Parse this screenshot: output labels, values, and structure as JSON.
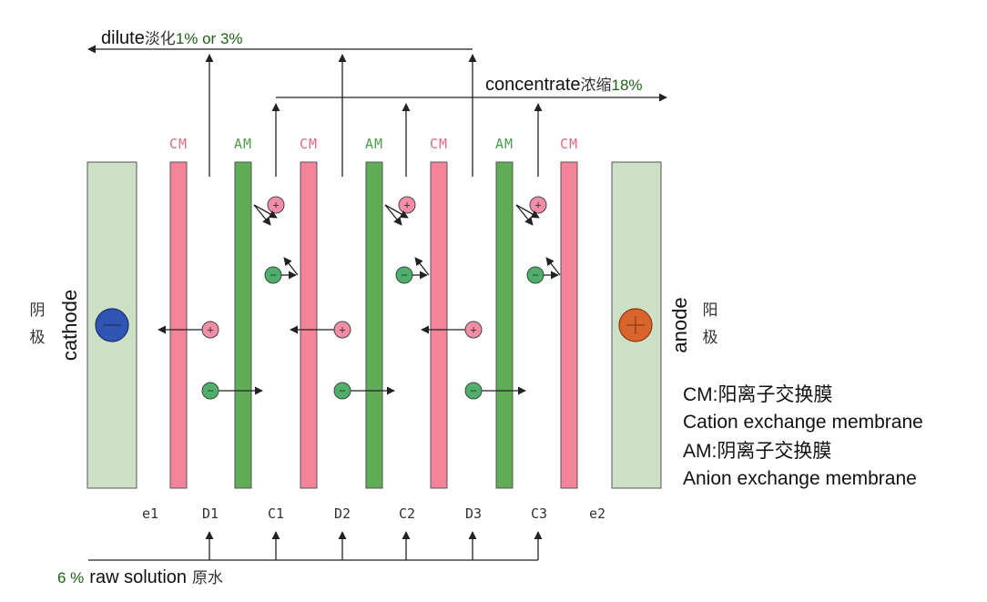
{
  "flows": {
    "dilute": {
      "en": "dilute",
      "cn": "淡化",
      "pct": "1% or 3%"
    },
    "concentrate": {
      "en": "concentrate",
      "cn": "浓缩",
      "pct": "18%"
    },
    "raw": {
      "pct": "6 %",
      "en": "raw solution",
      "cn": "原水"
    }
  },
  "membranes": {
    "labels": [
      "CM",
      "AM",
      "CM",
      "AM",
      "CM",
      "AM",
      "CM"
    ],
    "types": [
      "cation",
      "anion",
      "cation",
      "anion",
      "cation",
      "anion",
      "cation"
    ]
  },
  "channels": [
    "e1",
    "D1",
    "C1",
    "D2",
    "C2",
    "D3",
    "C3",
    "e2"
  ],
  "electrodes": {
    "cathode": {
      "en": "cathode",
      "cn1": "阴",
      "cn2": "极"
    },
    "anode": {
      "en": "anode",
      "cn1": "阳",
      "cn2": "极"
    }
  },
  "ion_signs": {
    "cation": "+",
    "anion": "−"
  },
  "legend": {
    "cm_abbr": "CM",
    "cm_cn": ":阳离子交换膜",
    "cm_en": "Cation exchange membrane",
    "am_abbr": "AM",
    "am_cn": ":阴离子交换膜",
    "am_en": "Anion exchange membrane"
  },
  "colors": {
    "cation_membrane": "#f48499",
    "anion_membrane": "#5fae56",
    "electrode": "#cde0c6",
    "cathode_ion": "#2f55b3",
    "anode_ion": "#d9652c",
    "cation_ion": "#f48ea6",
    "anion_ion": "#4fae6a",
    "cm_label": "#e36a7f",
    "am_label": "#4a9e4d"
  }
}
